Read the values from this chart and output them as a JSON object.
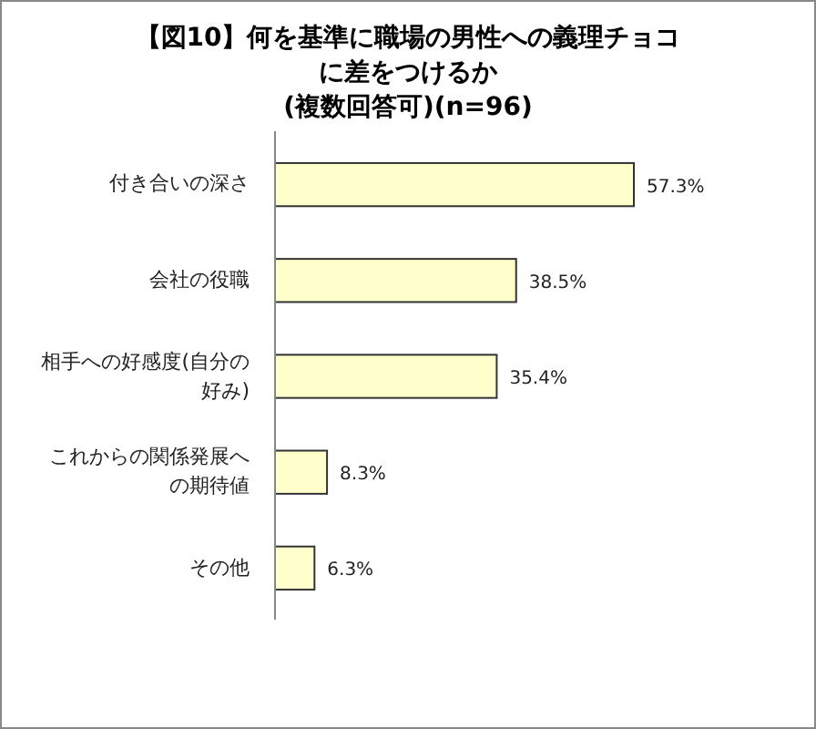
{
  "chart_data": {
    "type": "bar",
    "orientation": "horizontal",
    "title": "【図10】何を基準に職場の男性への義理チョコに差をつけるか",
    "subtitle": "(複数回答可)(n=96)",
    "categories": [
      "付き合いの深さ",
      "会社の役職",
      "相手への好感度(自分の好み)",
      "これからの関係発展への期待値",
      "その他"
    ],
    "values": [
      57.3,
      38.5,
      35.4,
      8.3,
      6.3
    ],
    "value_labels": [
      "57.3%",
      "38.5%",
      "35.4%",
      "8.3%",
      "6.3%"
    ],
    "color": "#ffffcc"
  }
}
